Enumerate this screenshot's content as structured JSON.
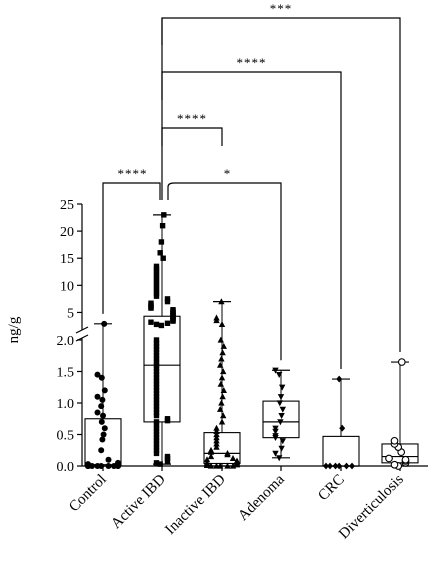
{
  "chart_data": {
    "type": "box",
    "ylabel": "ng/g",
    "y_axis": {
      "broken": true,
      "lower_segment": {
        "range": [
          0,
          2.0
        ],
        "ticks": [
          "0.0",
          "0.5",
          "1.0",
          "1.5",
          "2.0"
        ]
      },
      "upper_segment": {
        "range": [
          2.5,
          25
        ],
        "ticks": [
          "5",
          "10",
          "15",
          "20",
          "25"
        ]
      }
    },
    "categories": [
      "Control",
      "Active IBD",
      "Inactive IBD",
      "Adenoma",
      "CRC",
      "Diverticulosis"
    ],
    "series": [
      {
        "category": "Control",
        "marker": "circle-filled",
        "min": 0.0,
        "q1": 0.0,
        "median": 0.02,
        "q3": 0.75,
        "max": 2.9,
        "points": [
          0.0,
          0.0,
          0.0,
          0.0,
          0.0,
          0.0,
          0.0,
          0.0,
          0.0,
          0.0,
          0.02,
          0.03,
          0.05,
          0.1,
          0.25,
          0.42,
          0.5,
          0.6,
          0.7,
          0.8,
          0.85,
          0.95,
          1.05,
          1.1,
          1.2,
          1.4,
          1.45,
          2.9
        ]
      },
      {
        "category": "Active IBD",
        "marker": "square-filled",
        "min": 0.03,
        "q1": 0.7,
        "median": 1.6,
        "q3": 4.3,
        "max": 23.0,
        "points": [
          0.03,
          0.05,
          0.08,
          0.12,
          0.15,
          0.2,
          0.25,
          0.3,
          0.35,
          0.4,
          0.45,
          0.5,
          0.55,
          0.6,
          0.65,
          0.7,
          0.72,
          0.75,
          0.8,
          0.85,
          0.9,
          0.95,
          1.0,
          1.05,
          1.1,
          1.15,
          1.2,
          1.25,
          1.3,
          1.35,
          1.4,
          1.45,
          1.5,
          1.55,
          1.6,
          1.65,
          1.7,
          1.75,
          1.8,
          1.85,
          1.9,
          1.95,
          2.0,
          2.6,
          2.8,
          3.0,
          3.2,
          3.4,
          3.6,
          3.8,
          4.0,
          4.2,
          4.4,
          4.6,
          4.8,
          5.0,
          5.2,
          5.5,
          5.8,
          6.0,
          6.3,
          6.7,
          7.0,
          7.5,
          8.0,
          8.5,
          9.0,
          9.5,
          10.0,
          10.5,
          11.0,
          11.5,
          12.0,
          12.5,
          13.0,
          13.5,
          15.0,
          16.0,
          18.0,
          21.0,
          23.0
        ]
      },
      {
        "category": "Inactive IBD",
        "marker": "triangle-up-filled",
        "min": 0.0,
        "q1": 0.04,
        "median": 0.2,
        "q3": 0.53,
        "max": 7.0,
        "points": [
          0.0,
          0.0,
          0.0,
          0.0,
          0.0,
          0.01,
          0.02,
          0.03,
          0.04,
          0.05,
          0.06,
          0.08,
          0.1,
          0.12,
          0.15,
          0.18,
          0.2,
          0.22,
          0.25,
          0.3,
          0.35,
          0.4,
          0.45,
          0.5,
          0.55,
          0.6,
          0.7,
          0.8,
          0.9,
          1.0,
          1.1,
          1.2,
          1.3,
          1.4,
          1.5,
          1.6,
          1.7,
          1.8,
          1.9,
          2.0,
          2.8,
          3.5,
          4.0,
          7.0
        ]
      },
      {
        "category": "Adenoma",
        "marker": "triangle-down-filled",
        "min": 0.13,
        "q1": 0.45,
        "median": 0.7,
        "q3": 1.03,
        "max": 1.52,
        "points": [
          0.13,
          0.2,
          0.28,
          0.4,
          0.45,
          0.48,
          0.55,
          0.6,
          0.7,
          0.8,
          0.9,
          1.0,
          1.1,
          1.25,
          1.45,
          1.52
        ]
      },
      {
        "category": "CRC",
        "marker": "diamond-filled",
        "min": 0.0,
        "q1": 0.0,
        "median": 0.0,
        "q3": 0.47,
        "max": 1.38,
        "points": [
          0.0,
          0.0,
          0.0,
          0.0,
          0.0,
          0.0,
          0.6,
          1.38
        ]
      },
      {
        "category": "Diverticulosis",
        "marker": "circle-open",
        "min": 0.0,
        "q1": 0.05,
        "median": 0.15,
        "q3": 0.35,
        "max": 1.65,
        "points": [
          0.0,
          0.02,
          0.05,
          0.08,
          0.1,
          0.12,
          0.22,
          0.3,
          0.35,
          0.4,
          1.65
        ]
      }
    ],
    "significance": [
      {
        "from": "Active IBD",
        "to": "Control",
        "label": "****"
      },
      {
        "from": "Active IBD",
        "to": "Adenoma",
        "label": "*"
      },
      {
        "from": "Active IBD",
        "to": "Inactive IBD",
        "label": "****"
      },
      {
        "from": "Active IBD",
        "to": "CRC",
        "label": "****"
      },
      {
        "from": "Active IBD",
        "to": "Diverticulosis",
        "label": "***"
      }
    ]
  }
}
